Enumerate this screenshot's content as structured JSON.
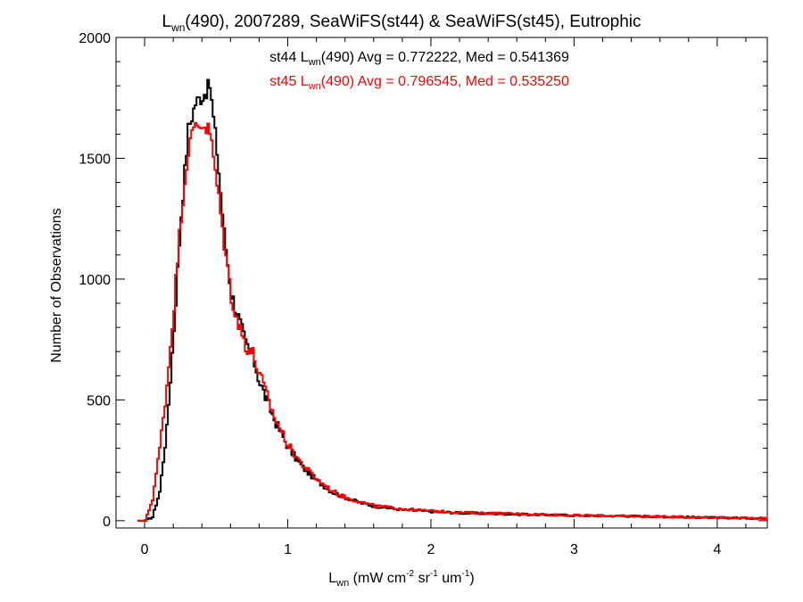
{
  "chart_data": {
    "type": "line",
    "title": {
      "prefix": "L",
      "prefix_sub": "wn",
      "rest": "(490), 2007289, SeaWiFS(st44) & SeaWiFS(st45), Eutrophic"
    },
    "xlabel": {
      "main": "L",
      "sub": "wn",
      "units_start": " (mW cm",
      "sup1": "-2",
      "units_mid": " sr",
      "sup2": "-1",
      "units_end": " um",
      "sup3": "-1",
      "close": ")"
    },
    "ylabel": "Number of Observations",
    "xlim": [
      -0.2,
      4.35
    ],
    "ylim": [
      -30,
      2000
    ],
    "x_ticks": [
      0,
      1,
      2,
      3,
      4
    ],
    "x_tick_labels": [
      "0",
      "1",
      "2",
      "3",
      "4"
    ],
    "y_ticks": [
      0,
      500,
      1000,
      1500,
      2000
    ],
    "y_tick_labels": [
      "0",
      "500",
      "1000",
      "1500",
      "2000"
    ],
    "series": [
      {
        "name": "st44",
        "color": "#000000",
        "legend": {
          "pre": "st44 L",
          "sub": "wn",
          "post": "(490) Avg = 0.772222, Med = 0.541369"
        },
        "x": [
          0.0,
          0.05,
          0.1,
          0.15,
          0.2,
          0.25,
          0.3,
          0.35,
          0.4,
          0.45,
          0.5,
          0.55,
          0.6,
          0.65,
          0.7,
          0.75,
          0.8,
          0.9,
          1.0,
          1.1,
          1.2,
          1.3,
          1.4,
          1.5,
          1.6,
          1.8,
          2.0,
          2.2,
          2.5,
          3.0,
          3.5,
          4.0,
          4.3
        ],
        "values": [
          0,
          15,
          120,
          380,
          800,
          1270,
          1620,
          1730,
          1760,
          1800,
          1530,
          1190,
          940,
          840,
          730,
          680,
          570,
          420,
          300,
          220,
          165,
          120,
          95,
          75,
          60,
          45,
          38,
          32,
          28,
          22,
          18,
          12,
          10
        ]
      },
      {
        "name": "st45",
        "color": "#ff0000",
        "legend": {
          "pre": "st45 L",
          "sub": "wn",
          "post": "(490) Avg = 0.796545, Med = 0.535250"
        },
        "x": [
          0.0,
          0.05,
          0.1,
          0.15,
          0.2,
          0.25,
          0.3,
          0.35,
          0.4,
          0.45,
          0.5,
          0.55,
          0.6,
          0.65,
          0.7,
          0.75,
          0.8,
          0.9,
          1.0,
          1.1,
          1.2,
          1.3,
          1.4,
          1.5,
          1.6,
          1.8,
          2.0,
          2.2,
          2.5,
          3.0,
          3.5,
          4.0,
          4.3
        ],
        "values": [
          0,
          90,
          300,
          560,
          900,
          1270,
          1540,
          1640,
          1640,
          1610,
          1390,
          1150,
          930,
          810,
          730,
          690,
          600,
          430,
          310,
          230,
          170,
          125,
          95,
          78,
          62,
          48,
          40,
          34,
          30,
          22,
          18,
          13,
          10
        ]
      }
    ]
  }
}
